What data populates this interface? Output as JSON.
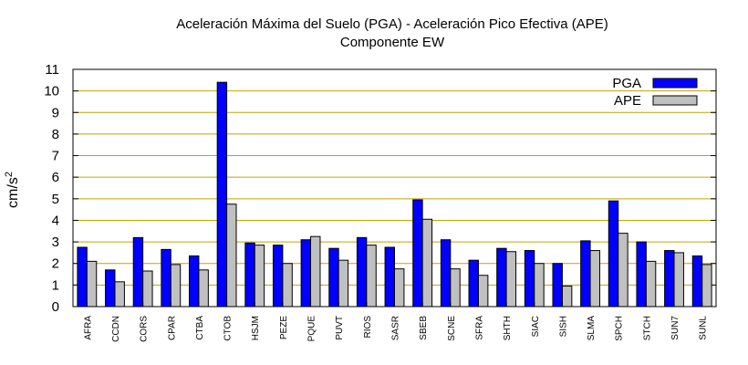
{
  "chart_data": {
    "type": "bar",
    "title": "Aceleración Máxima del Suelo (PGA) -  Aceleración Pico Efectiva (APE)",
    "subtitle": "Componente EW",
    "ylabel": "cm/s",
    "ylabel_sup": "2",
    "ylim": [
      0,
      11
    ],
    "yticks": [
      "0",
      "1",
      "2",
      "3",
      "4",
      "5",
      "6",
      "7",
      "8",
      "9",
      "10",
      "11"
    ],
    "grid": true,
    "legend_position": "top-right",
    "categories": [
      "AFRA",
      "CCDN",
      "CORS",
      "CPAR",
      "CTBA",
      "CTOB",
      "HSJM",
      "PEZE",
      "PQUE",
      "PUVT",
      "RIOS",
      "SASR",
      "SBEB",
      "SCNE",
      "SFRA",
      "SHTH",
      "SIAC",
      "SISH",
      "SLMA",
      "SPCH",
      "STCH",
      "SUN7",
      "SUNL"
    ],
    "series": [
      {
        "name": "PGA",
        "color": "#0000ff",
        "values": [
          2.75,
          1.7,
          3.2,
          2.65,
          2.35,
          10.4,
          2.95,
          2.85,
          3.1,
          2.7,
          3.2,
          2.75,
          4.95,
          3.1,
          2.15,
          2.7,
          2.6,
          2.0,
          3.05,
          4.9,
          3.0,
          2.6,
          2.35
        ]
      },
      {
        "name": "APE",
        "color": "#c0c0c0",
        "values": [
          2.1,
          1.15,
          1.65,
          1.95,
          1.7,
          4.75,
          2.85,
          2.0,
          3.25,
          2.15,
          2.85,
          1.75,
          4.05,
          1.75,
          1.45,
          2.55,
          2.0,
          0.95,
          2.6,
          3.4,
          2.1,
          2.5,
          1.95
        ]
      }
    ]
  }
}
